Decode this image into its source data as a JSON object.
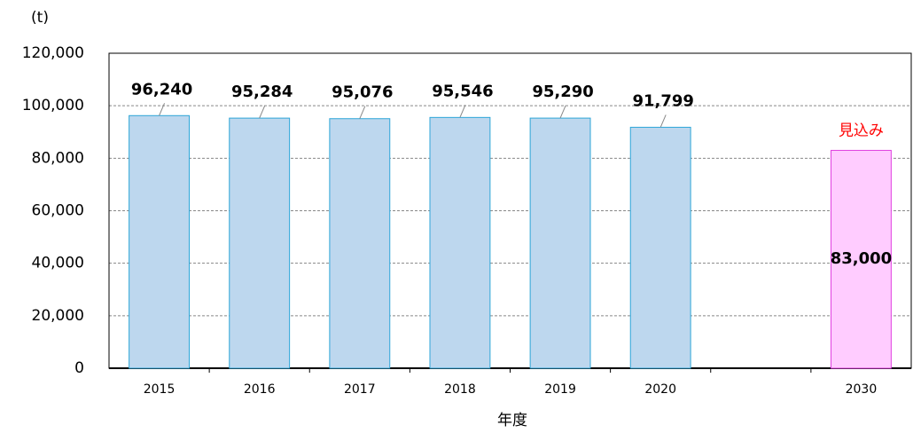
{
  "chart_data": {
    "type": "bar",
    "y_label": "(t)",
    "x_label": "年度",
    "categories": [
      "2015",
      "2016",
      "2017",
      "2018",
      "2019",
      "2020",
      null,
      "2030"
    ],
    "values": [
      96240,
      95284,
      95076,
      95546,
      95290,
      91799,
      null,
      83000
    ],
    "value_labels": [
      "96,240",
      "95,284",
      "95,076",
      "95,546",
      "95,290",
      "91,799",
      null,
      "83,000"
    ],
    "colors": [
      "#bdd7ee",
      "#bdd7ee",
      "#bdd7ee",
      "#bdd7ee",
      "#bdd7ee",
      "#bdd7ee",
      null,
      "#ffccff"
    ],
    "edge_colors": [
      "#2ea6d8",
      "#2ea6d8",
      "#2ea6d8",
      "#2ea6d8",
      "#2ea6d8",
      "#2ea6d8",
      null,
      "#e040e0"
    ],
    "annotation": "見込み",
    "annotation_color": "#ff0000",
    "ylim": [
      0,
      120000
    ],
    "yticks": [
      {
        "value": 0,
        "label": "0"
      },
      {
        "value": 20000,
        "label": "20,000"
      },
      {
        "value": 40000,
        "label": "40,000"
      },
      {
        "value": 60000,
        "label": "60,000"
      },
      {
        "value": 80000,
        "label": "80,000"
      },
      {
        "value": 100000,
        "label": "100,000"
      },
      {
        "value": 120000,
        "label": "120,000"
      }
    ],
    "grid": true
  }
}
